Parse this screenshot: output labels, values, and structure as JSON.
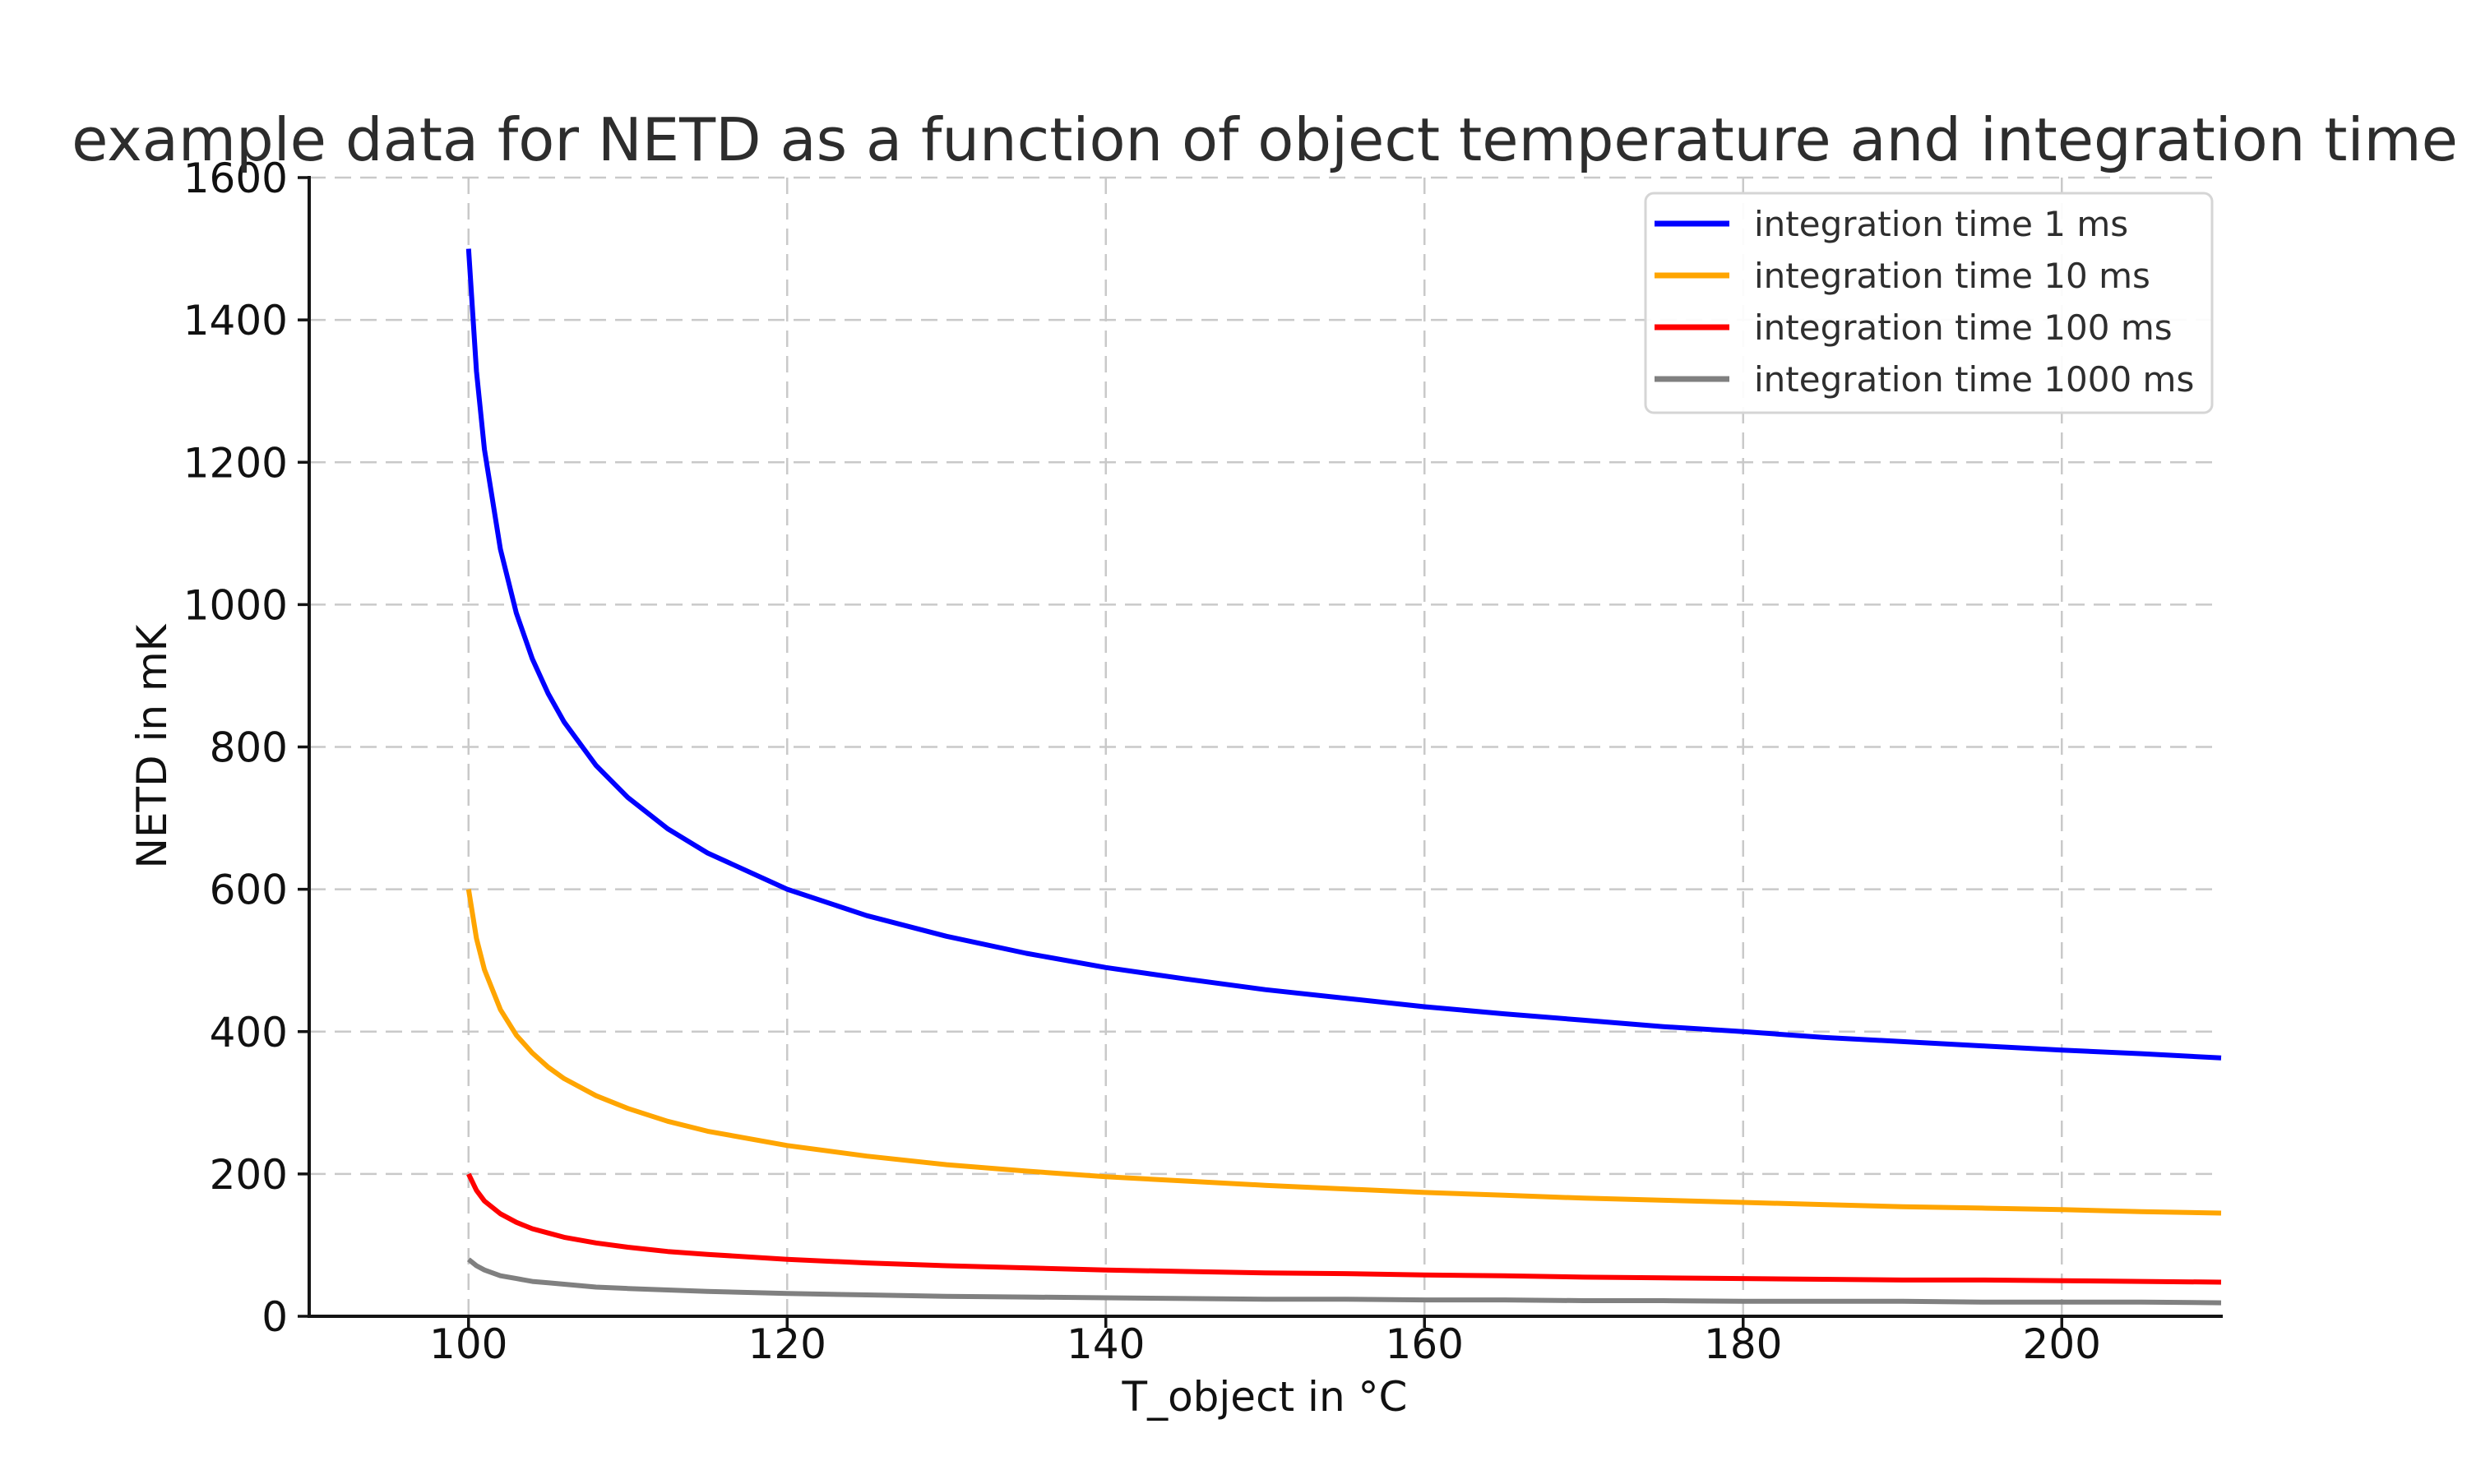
{
  "chart_data": {
    "type": "line",
    "title": "example data for NETD as a function of object temperature and integration time",
    "xlabel": "T_object in °C",
    "ylabel": "NETD in mK",
    "xlim": [
      90,
      210
    ],
    "ylim": [
      0,
      1600
    ],
    "xticks": [
      100,
      120,
      140,
      160,
      180,
      200
    ],
    "yticks": [
      0,
      200,
      400,
      600,
      800,
      1000,
      1200,
      1400,
      1600
    ],
    "grid": {
      "visible": true,
      "style": "dashed",
      "color": "#c9c9c9"
    },
    "legend": {
      "position": "upper right"
    },
    "x": [
      100,
      100.5,
      101,
      102,
      103,
      104,
      105,
      106,
      108,
      110,
      112.5,
      115,
      120,
      125,
      130,
      135,
      140,
      145,
      150,
      155,
      160,
      165,
      170,
      175,
      180,
      185,
      190,
      195,
      200,
      205,
      210
    ],
    "series": [
      {
        "name": "integration time 1 ms",
        "color": "#0000ff",
        "values": [
          1500,
          1328,
          1218,
          1078,
          988,
          924,
          875,
          835,
          774,
          729,
          685,
          651,
          600,
          563,
          534,
          510,
          490,
          474,
          459,
          447,
          435,
          425,
          416,
          407,
          400,
          392,
          386,
          380,
          374,
          369,
          363
        ]
      },
      {
        "name": "integration time 10 ms",
        "color": "#ffa500",
        "values": [
          600,
          531,
          487,
          431,
          395,
          370,
          350,
          334,
          310,
          292,
          274,
          260,
          240,
          225,
          213,
          204,
          196,
          190,
          184,
          179,
          174,
          170,
          166,
          163,
          160,
          157,
          154,
          152,
          150,
          147,
          145
        ]
      },
      {
        "name": "integration time 100 ms",
        "color": "#ff0000",
        "values": [
          200,
          177,
          162,
          144,
          132,
          123,
          117,
          111,
          103,
          97,
          91,
          87,
          80,
          75,
          71,
          68,
          65,
          63,
          61,
          60,
          58,
          57,
          55,
          54,
          53,
          52,
          51,
          51,
          50,
          49,
          48
        ]
      },
      {
        "name": "integration time 1000 ms",
        "color": "#808080",
        "values": [
          80,
          71,
          65,
          57,
          53,
          49,
          47,
          45,
          41,
          39,
          37,
          35,
          32,
          30,
          28,
          27,
          26,
          25,
          24,
          24,
          23,
          23,
          22,
          22,
          21,
          21,
          21,
          20,
          20,
          20,
          19
        ]
      }
    ]
  }
}
